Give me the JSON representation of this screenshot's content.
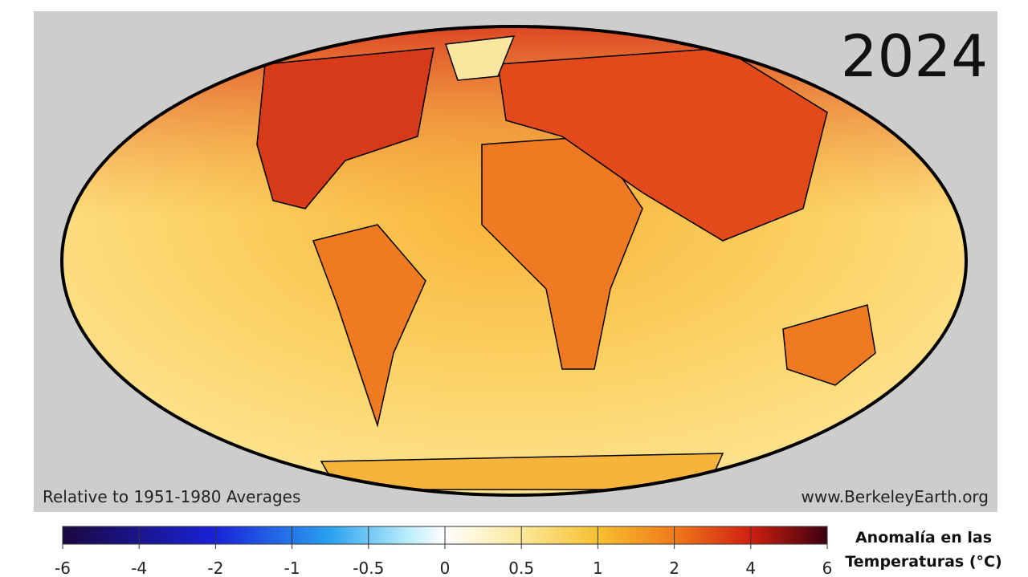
{
  "title": "2024",
  "footer_left": "Relative to 1951-1980 Averages",
  "footer_right": "www.BerkeleyEarth.org",
  "colorbar": {
    "label_lines": [
      "Anomalía en las",
      "Temperaturas (°C)"
    ],
    "ticks": [
      -6,
      -4,
      -2,
      -1,
      -0.5,
      0,
      0.5,
      1,
      2,
      4,
      6
    ]
  }
}
